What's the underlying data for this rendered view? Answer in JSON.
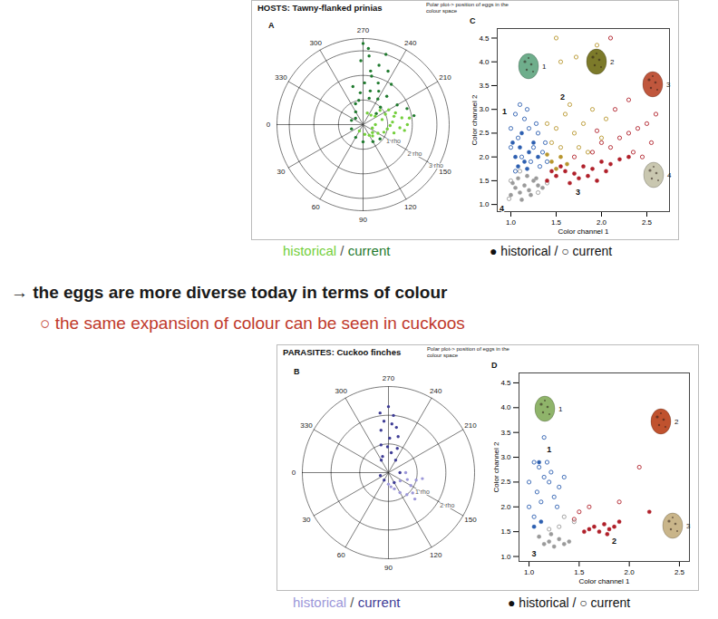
{
  "chart_data": [
    {
      "type": "polar_scatter",
      "panel": "A",
      "rlim": [
        0,
        3.5
      ],
      "rticks": [
        {
          "value": 1,
          "label": "1 rho"
        },
        {
          "value": 2,
          "label": "2 rho"
        },
        {
          "value": 3,
          "label": "3 rho"
        }
      ],
      "theta_ticks": [
        0,
        30,
        60,
        90,
        120,
        150,
        210,
        240,
        270,
        300,
        330
      ],
      "series": [
        {
          "name": "historical",
          "color": "#74cf3c",
          "theta": [
            180,
            175,
            185,
            190,
            170,
            200,
            195,
            160,
            205,
            210,
            165,
            150,
            140,
            215,
            220,
            180,
            188,
            172,
            130,
            230,
            178,
            195,
            160,
            120,
            100,
            60,
            250
          ],
          "rho": [
            1.8,
            1.5,
            1.2,
            1.6,
            1.0,
            1.4,
            0.8,
            0.9,
            1.0,
            1.2,
            1.3,
            0.7,
            0.5,
            0.6,
            0.9,
            0.5,
            1.9,
            1.7,
            0.6,
            0.5,
            1.1,
            1.3,
            0.4,
            0.5,
            0.4,
            0.3,
            0.5
          ]
        },
        {
          "name": "current",
          "color": "#1f7a2e",
          "theta": [
            260,
            255,
            265,
            270,
            250,
            245,
            240,
            258,
            262,
            268,
            275,
            280,
            235,
            230,
            225,
            210,
            200,
            190,
            245,
            252,
            272,
            285,
            290,
            300,
            320,
            340,
            20,
            60,
            90,
            120,
            140,
            220,
            266,
            257
          ],
          "rho": [
            2.0,
            2.5,
            2.8,
            3.3,
            1.8,
            1.5,
            1.2,
            1.4,
            2.2,
            1.7,
            1.3,
            1.0,
            2.0,
            1.5,
            1.0,
            1.6,
            1.9,
            2.1,
            2.4,
            3.0,
            2.6,
            1.6,
            0.9,
            0.6,
            0.4,
            0.5,
            0.5,
            0.6,
            0.7,
            0.8,
            0.9,
            0.7,
            3.1,
            1.1
          ]
        }
      ]
    },
    {
      "type": "scatter",
      "panel": "C",
      "xlabel": "Color channel 1",
      "ylabel": "Color channel 2",
      "xlim": [
        0.85,
        2.75
      ],
      "ylim": [
        0.85,
        4.7
      ],
      "xticks": [
        {
          "value": 1,
          "label": "1.0"
        },
        1.5,
        {
          "value": 2,
          "label": "2.0"
        },
        2.5
      ],
      "yticks": [
        {
          "value": 1,
          "label": "1.0"
        },
        1.5,
        {
          "value": 2,
          "label": "2.0"
        },
        2.5,
        {
          "value": 3,
          "label": "3.0"
        },
        3.5,
        {
          "value": 4,
          "label": "4.0"
        },
        4.5
      ],
      "series": [
        {
          "name": "current",
          "marker": "open",
          "color": "#2d5fb0",
          "x": [
            1.0,
            1.05,
            1.1,
            1.15,
            1.2,
            1.08,
            1.25,
            1.3,
            1.35,
            1.4,
            1.0,
            1.12,
            1.22,
            1.18,
            1.28,
            1.05,
            1.32,
            1.38
          ],
          "y": [
            2.6,
            2.9,
            3.1,
            2.8,
            2.6,
            2.4,
            2.2,
            2.5,
            2.1,
            1.9,
            2.2,
            2.0,
            1.9,
            3.0,
            2.7,
            1.7,
            1.8,
            2.3
          ]
        },
        {
          "name": "current",
          "marker": "open",
          "color": "#b8962e",
          "x": [
            1.45,
            1.5,
            1.6,
            1.7,
            1.8,
            1.9,
            2.0,
            1.55,
            1.65,
            1.75,
            1.85,
            2.05,
            1.4,
            1.55,
            1.5,
            1.95,
            1.72
          ],
          "y": [
            2.3,
            2.6,
            2.9,
            2.5,
            2.7,
            3.0,
            2.4,
            2.2,
            3.1,
            2.2,
            2.1,
            2.8,
            2.7,
            4.0,
            4.5,
            4.35,
            4.1
          ]
        },
        {
          "name": "current",
          "marker": "open",
          "color": "#b0202a",
          "x": [
            1.7,
            1.9,
            2.1,
            2.2,
            2.3,
            2.4,
            2.5,
            2.0,
            2.35,
            2.55,
            2.6,
            2.15,
            1.95,
            2.3,
            2.45,
            2.1
          ],
          "y": [
            2.0,
            2.1,
            2.2,
            2.4,
            2.5,
            2.6,
            2.7,
            2.3,
            2.1,
            2.3,
            2.9,
            3.0,
            2.55,
            3.2,
            2.0,
            4.5
          ]
        },
        {
          "name": "current",
          "marker": "open",
          "color": "#9a9a9a",
          "x": [
            0.98,
            1.0,
            1.1,
            1.3,
            1.4
          ],
          "y": [
            1.12,
            1.5,
            1.7,
            1.25,
            1.45
          ]
        },
        {
          "name": "historical",
          "marker": "filled",
          "color": "#2d5fb0",
          "x": [
            1.05,
            1.1,
            1.15,
            1.2,
            1.08,
            1.25,
            1.12,
            1.3,
            1.18,
            1.02
          ],
          "y": [
            2.0,
            2.2,
            1.9,
            2.1,
            1.8,
            2.3,
            2.5,
            2.0,
            1.75,
            2.3
          ]
        },
        {
          "name": "historical",
          "marker": "filled",
          "color": "#b8962e",
          "x": [
            1.45,
            1.55,
            1.5,
            1.62,
            1.4
          ],
          "y": [
            1.9,
            2.0,
            1.75,
            1.85,
            2.05
          ]
        },
        {
          "name": "historical",
          "marker": "filled",
          "color": "#b0202a",
          "x": [
            1.4,
            1.5,
            1.6,
            1.7,
            1.8,
            1.9,
            2.0,
            2.1,
            2.2,
            1.75,
            1.65,
            1.85,
            1.95,
            2.3,
            1.55,
            2.05,
            1.45
          ],
          "y": [
            1.5,
            1.6,
            1.7,
            1.65,
            1.8,
            1.75,
            1.9,
            1.85,
            1.95,
            1.55,
            1.45,
            1.6,
            1.5,
            2.0,
            1.8,
            1.7,
            1.7
          ]
        },
        {
          "name": "historical",
          "marker": "filled",
          "color": "#9a9a9a",
          "x": [
            1.0,
            1.05,
            1.1,
            1.15,
            1.2,
            1.25,
            1.08,
            1.3,
            1.12,
            1.18,
            1.02,
            1.22,
            1.28,
            1.35
          ],
          "y": [
            1.2,
            1.35,
            1.25,
            1.4,
            1.3,
            1.5,
            1.55,
            1.4,
            1.1,
            1.6,
            1.45,
            1.2,
            1.55,
            1.35
          ]
        }
      ],
      "annotations": [
        {
          "text": "1",
          "x": 0.93,
          "y": 2.95
        },
        {
          "text": "2",
          "x": 1.57,
          "y": 3.25
        },
        {
          "text": "3",
          "x": 1.74,
          "y": 1.25
        },
        {
          "text": "4",
          "x": 0.9,
          "y": 0.92
        }
      ],
      "eggs": [
        {
          "label": "1",
          "color": "#6fae8c"
        },
        {
          "label": "2",
          "color": "#7c7a2a"
        },
        {
          "label": "3",
          "color": "#c0573d"
        },
        {
          "label": "4",
          "color": "#c9c7b0"
        }
      ]
    },
    {
      "type": "polar_scatter",
      "panel": "B",
      "rlim": [
        0,
        3
      ],
      "rticks": [
        {
          "value": 1,
          "label": "1 rho"
        },
        {
          "value": 2,
          "label": "2 rho"
        }
      ],
      "theta_ticks": [
        0,
        30,
        60,
        90,
        120,
        150,
        210,
        240,
        270,
        300,
        330
      ],
      "series": [
        {
          "name": "historical",
          "color": "#9c97d9",
          "theta": [
            150,
            140,
            130,
            160,
            120,
            110,
            100,
            170,
            145,
            135,
            90,
            180,
            165
          ],
          "rho": [
            0.9,
            1.1,
            1.0,
            0.7,
            0.8,
            0.6,
            0.5,
            1.2,
            0.5,
            1.3,
            0.4,
            0.6,
            1.0
          ]
        },
        {
          "name": "current",
          "color": "#3f3d96",
          "theta": [
            270,
            265,
            275,
            260,
            280,
            268,
            285,
            255,
            272,
            262,
            290,
            250,
            278,
            266,
            300,
            240,
            180,
            120,
            60,
            20
          ],
          "rho": [
            2.3,
            2.0,
            1.8,
            1.6,
            1.5,
            1.2,
            1.0,
            1.3,
            0.9,
            0.7,
            0.6,
            0.9,
            2.1,
            1.7,
            0.5,
            0.5,
            0.4,
            0.4,
            0.3,
            0.3
          ]
        }
      ]
    },
    {
      "type": "scatter",
      "panel": "D",
      "xlabel": "Color channel 1",
      "ylabel": "Color channel 2",
      "xlim": [
        0.9,
        2.6
      ],
      "ylim": [
        0.9,
        4.7
      ],
      "xticks": [
        {
          "value": 1,
          "label": "1.0"
        },
        1.5,
        {
          "value": 2,
          "label": "2.0"
        },
        2.5
      ],
      "yticks": [
        {
          "value": 1,
          "label": "1.0"
        },
        1.5,
        {
          "value": 2,
          "label": "2.0"
        },
        2.5,
        {
          "value": 3,
          "label": "3.0"
        },
        3.5,
        {
          "value": 4,
          "label": "4.0"
        },
        4.5
      ],
      "series": [
        {
          "name": "current",
          "marker": "open",
          "color": "#2d5fb0",
          "x": [
            1.05,
            1.1,
            1.15,
            1.2,
            1.0,
            1.08,
            1.25,
            1.3,
            1.12,
            1.0,
            1.18,
            1.22,
            1.05,
            1.15,
            1.28,
            1.35
          ],
          "y": [
            2.9,
            2.8,
            2.6,
            2.5,
            2.5,
            2.3,
            2.2,
            2.4,
            2.1,
            2.0,
            2.9,
            2.7,
            1.8,
            3.4,
            2.0,
            2.6
          ]
        },
        {
          "name": "current",
          "marker": "open",
          "color": "#b0202a",
          "x": [
            1.5,
            1.6,
            1.9,
            2.1,
            1.45
          ],
          "y": [
            1.9,
            2.0,
            2.1,
            2.8,
            1.75
          ]
        },
        {
          "name": "current",
          "marker": "open",
          "color": "#9a9a9a",
          "x": [
            1.35,
            1.45,
            1.3,
            1.2
          ],
          "y": [
            1.8,
            1.7,
            1.6,
            1.55
          ]
        },
        {
          "name": "historical",
          "marker": "filled",
          "color": "#2d5fb0",
          "x": [
            1.1,
            1.05,
            1.12
          ],
          "y": [
            2.9,
            1.6,
            1.7
          ]
        },
        {
          "name": "historical",
          "marker": "filled",
          "color": "#b0202a",
          "x": [
            1.6,
            1.65,
            1.7,
            1.75,
            1.8,
            1.85,
            1.55,
            1.9,
            2.2,
            1.78
          ],
          "y": [
            1.55,
            1.6,
            1.5,
            1.65,
            1.55,
            1.6,
            1.5,
            1.7,
            1.9,
            1.45
          ]
        },
        {
          "name": "historical",
          "marker": "filled",
          "color": "#9a9a9a",
          "x": [
            1.15,
            1.2,
            1.25,
            1.3,
            1.35,
            1.1,
            1.22,
            1.4
          ],
          "y": [
            1.25,
            1.3,
            1.2,
            1.35,
            1.25,
            1.4,
            1.45,
            1.3
          ]
        }
      ],
      "annotations": [
        {
          "text": "1",
          "x": 1.2,
          "y": 3.15
        },
        {
          "text": "2",
          "x": 1.85,
          "y": 1.3
        },
        {
          "text": "3",
          "x": 1.05,
          "y": 1.05
        }
      ],
      "eggs": [
        {
          "label": "1",
          "color": "#8fb46a"
        },
        {
          "label": "2",
          "color": "#c0522e"
        },
        {
          "label": "3",
          "color": "#c9b58a"
        }
      ]
    }
  ],
  "figures": [
    {
      "title": "HOSTS: Tawny-flanked prinias",
      "annotation": "Polar plot-> position of eggs in the colour space",
      "caption_separator": " / ",
      "marker_caption": "● historical / ○ current"
    },
    {
      "title": "PARASITES: Cuckoo finches",
      "annotation": "Polar plot-> position of eggs in the colour space",
      "caption_separator": " / ",
      "marker_caption": "● historical / ○ current"
    }
  ],
  "notes": [
    {
      "text": "→ the eggs are more diverse today in terms of colour",
      "color": "#1a1a1a"
    },
    {
      "text": "○ the same expansion of colour can be seen in cuckoos",
      "color": "#c0392b"
    }
  ]
}
